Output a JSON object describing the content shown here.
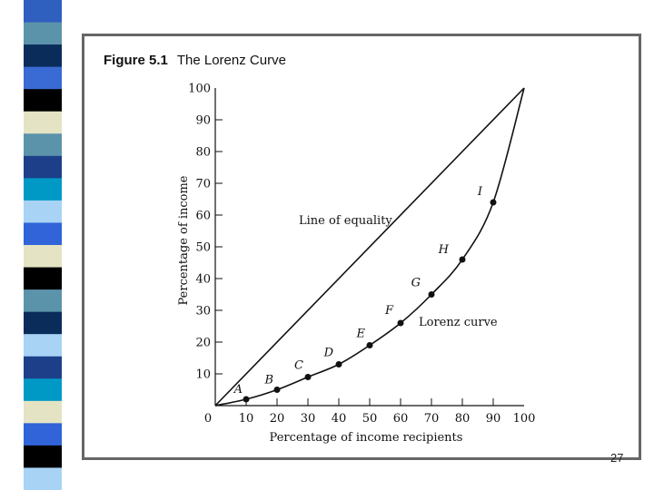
{
  "stripe_colors": [
    "#2f5fbf",
    "#5b93aa",
    "#0a2c5a",
    "#3a6ad4",
    "#000000",
    "#e4e4c4",
    "#5b93aa",
    "#1d3f8a",
    "#0099c6",
    "#a8d3f5",
    "#3064d8",
    "#e4e4c4",
    "#000000",
    "#5b93aa",
    "#0a2c5a",
    "#a8d3f5",
    "#1d3f8a",
    "#0099c6",
    "#e4e4c4",
    "#3064d8",
    "#000000",
    "#a8d3f5"
  ],
  "figure": {
    "number": "Figure 5.1",
    "title": "The Lorenz Curve"
  },
  "slide_number": "27",
  "chart_data": {
    "type": "line",
    "xlabel": "Percentage of income recipients",
    "ylabel": "Percentage of income",
    "xlim": [
      0,
      100
    ],
    "ylim": [
      0,
      100
    ],
    "x_ticks": [
      0,
      10,
      20,
      30,
      40,
      50,
      60,
      70,
      80,
      90,
      100
    ],
    "y_ticks": [
      10,
      20,
      30,
      40,
      50,
      60,
      70,
      80,
      90,
      100
    ],
    "grid": false,
    "series": [
      {
        "name": "Line of equality",
        "x": [
          0,
          100
        ],
        "y": [
          0,
          100
        ]
      },
      {
        "name": "Lorenz curve",
        "x": [
          0,
          10,
          20,
          30,
          40,
          50,
          60,
          70,
          80,
          90,
          100
        ],
        "y": [
          0,
          2,
          5,
          9,
          13,
          19,
          26,
          35,
          46,
          64,
          100
        ]
      }
    ],
    "points": [
      {
        "label": "A",
        "x": 10,
        "y": 2
      },
      {
        "label": "B",
        "x": 20,
        "y": 5
      },
      {
        "label": "C",
        "x": 30,
        "y": 9
      },
      {
        "label": "D",
        "x": 40,
        "y": 13
      },
      {
        "label": "E",
        "x": 50,
        "y": 19
      },
      {
        "label": "F",
        "x": 60,
        "y": 26
      },
      {
        "label": "G",
        "x": 70,
        "y": 35
      },
      {
        "label": "H",
        "x": 80,
        "y": 46
      },
      {
        "label": "I",
        "x": 90,
        "y": 64
      }
    ]
  }
}
